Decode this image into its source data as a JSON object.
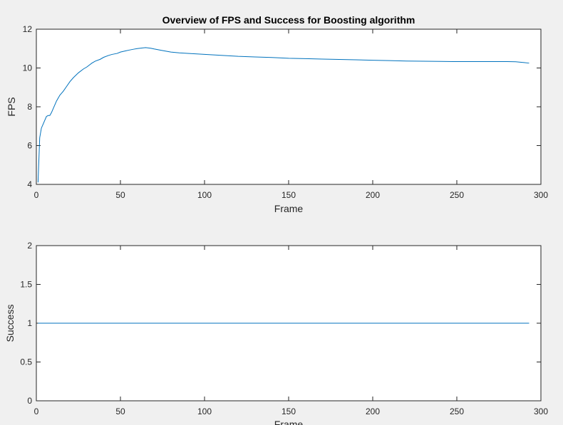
{
  "colors": {
    "figure_background": "#f0f0f0",
    "axes_background": "#ffffff",
    "axis_color": "#262626",
    "line_color": "#0072bd"
  },
  "chart_data": [
    {
      "type": "line",
      "title": "Overview of FPS and Success for Boosting algorithm",
      "xlabel": "Frame",
      "ylabel": "FPS",
      "xlim": [
        0,
        300
      ],
      "ylim": [
        4,
        12
      ],
      "xticks": [
        "0",
        "50",
        "100",
        "150",
        "200",
        "250",
        "300"
      ],
      "yticks": [
        "4",
        "6",
        "8",
        "10",
        "12"
      ],
      "grid": false,
      "series": [
        {
          "x": [
            1,
            2,
            3,
            4,
            5,
            6,
            7,
            8,
            9,
            10,
            12,
            14,
            16,
            18,
            20,
            22,
            25,
            28,
            30,
            33,
            35,
            38,
            40,
            43,
            45,
            48,
            50,
            53,
            55,
            58,
            60,
            63,
            65,
            68,
            70,
            75,
            80,
            85,
            90,
            100,
            110,
            120,
            130,
            140,
            150,
            160,
            170,
            180,
            190,
            200,
            210,
            220,
            230,
            240,
            250,
            260,
            270,
            280,
            285,
            290,
            293
          ],
          "values": [
            4.1,
            6.4,
            6.9,
            7.1,
            7.3,
            7.5,
            7.55,
            7.55,
            7.7,
            7.9,
            8.3,
            8.6,
            8.8,
            9.05,
            9.3,
            9.5,
            9.75,
            9.95,
            10.05,
            10.25,
            10.35,
            10.45,
            10.55,
            10.65,
            10.7,
            10.75,
            10.82,
            10.88,
            10.92,
            10.97,
            11.0,
            11.03,
            11.05,
            11.02,
            10.98,
            10.9,
            10.82,
            10.78,
            10.75,
            10.7,
            10.65,
            10.6,
            10.57,
            10.54,
            10.5,
            10.48,
            10.46,
            10.44,
            10.42,
            10.4,
            10.38,
            10.36,
            10.35,
            10.34,
            10.33,
            10.33,
            10.33,
            10.33,
            10.32,
            10.28,
            10.25
          ]
        }
      ]
    },
    {
      "type": "line",
      "title": "",
      "xlabel": "Frame",
      "ylabel": "Success",
      "xlim": [
        0,
        300
      ],
      "ylim": [
        0,
        2
      ],
      "xticks": [
        "0",
        "50",
        "100",
        "150",
        "200",
        "250",
        "300"
      ],
      "yticks": [
        "0",
        "0.5",
        "1",
        "1.5",
        "2"
      ],
      "grid": false,
      "series": [
        {
          "x": [
            1,
            293
          ],
          "values": [
            1,
            1
          ]
        }
      ]
    }
  ]
}
